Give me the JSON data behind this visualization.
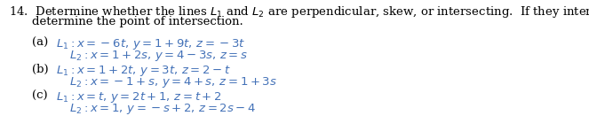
{
  "bg_color": "#ffffff",
  "fig_width": 6.63,
  "fig_height": 1.57,
  "dpi": 100,
  "header_color": "#000000",
  "math_color": "#4472b8",
  "label_color": "#000000",
  "fontsize": 9.5,
  "header": [
    "14.  Determine whether the lines $L_1$ and $L_2$ are perpendicular, skew, or intersecting.  If they intersect,",
    "determine the point of intersection."
  ],
  "parts": [
    {
      "label": "(a)",
      "L1": "$L_1 : x = -6t,\\, y = 1 + 9t,\\, z = -3t$",
      "L2": "$L_2 : x = 1 + 2s,\\, y = 4 - 3s,\\, z = s$"
    },
    {
      "label": "(b)",
      "L1": "$L_1 : x = 1 + 2t,\\, y = 3t,\\, z = 2 - t$",
      "L2": "$L_2 : x = -1 + s,\\, y = 4 + s,\\, z = 1 + 3s$"
    },
    {
      "label": "(c)",
      "L1": "$L_1 : x = t,\\, y = 2t + 1,\\, z = t + 2$",
      "L2": "$L_2 : x = 1,\\, y = -s + 2,\\, z = 2s - 4$"
    }
  ]
}
